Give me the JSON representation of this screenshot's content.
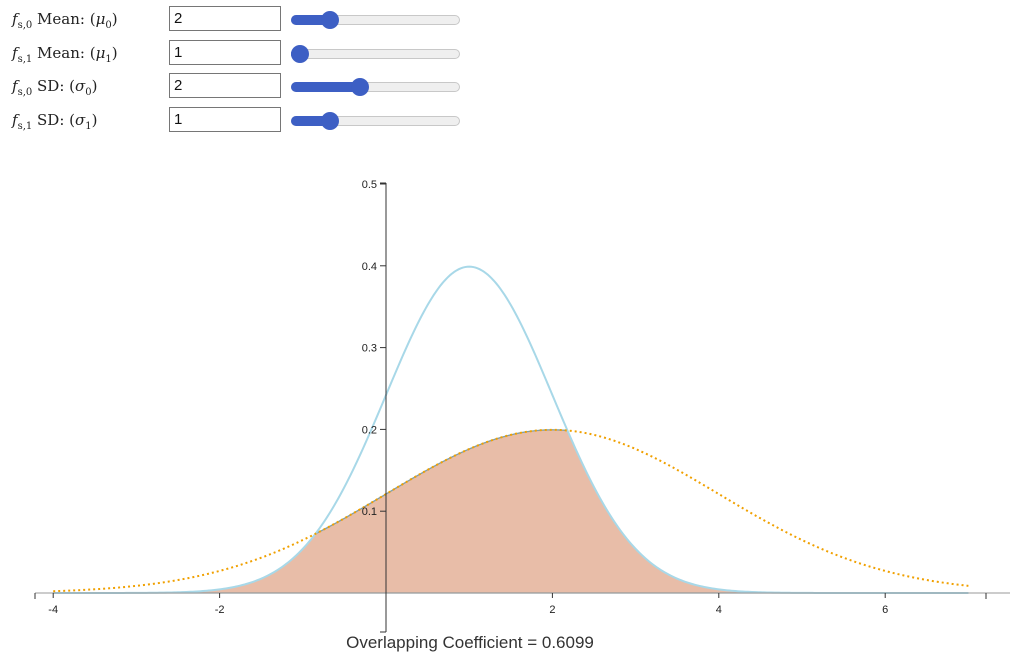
{
  "controls": [
    {
      "id": "mu0",
      "fname": "s,0",
      "word": "Mean:",
      "greek": "μ",
      "sub": "0",
      "value": "2",
      "slider": {
        "min": 0,
        "max": 10,
        "value": 2
      }
    },
    {
      "id": "mu1",
      "fname": "s,1",
      "word": "Mean:",
      "greek": "μ",
      "sub": "1",
      "value": "1",
      "slider": {
        "min": 1,
        "max": 10,
        "value": 1
      }
    },
    {
      "id": "sd0",
      "fname": "s,0",
      "word": "SD:",
      "greek": "σ",
      "sub": "0",
      "value": "2",
      "slider": {
        "min": 0,
        "max": 5,
        "value": 2
      }
    },
    {
      "id": "sd1",
      "fname": "s,1",
      "word": "SD:",
      "greek": "σ",
      "sub": "1",
      "value": "1",
      "slider": {
        "min": 0,
        "max": 5,
        "value": 1
      }
    }
  ],
  "caption": "Overlapping Coefficient = 0.6099",
  "colors": {
    "slider_accent": "#3d5fc4",
    "curve0": "#f0a000",
    "curve1": "#a8d8e8",
    "overlap_fill": "#e8bda8",
    "overlap_stroke": "#7f9fa6"
  },
  "chart_data": {
    "type": "area",
    "xlim": [
      -4,
      7
    ],
    "ylim": [
      0,
      0.5
    ],
    "x_ticks": [
      -4,
      -2,
      2,
      4,
      6
    ],
    "x_tick_labels": [
      "-4",
      "-2",
      "2",
      "4",
      "6"
    ],
    "y_ticks": [
      0.1,
      0.2,
      0.3,
      0.4,
      0.5
    ],
    "y_tick_labels": [
      "0.1",
      "0.2",
      "0.3",
      "0.4",
      "0.5"
    ],
    "series": [
      {
        "distribution": "normal",
        "mean": 2,
        "sd": 2,
        "style": "dotted"
      },
      {
        "distribution": "normal",
        "mean": 1,
        "sd": 1,
        "style": "solid"
      }
    ],
    "overlap": {
      "shaded": true,
      "coefficient": 0.6099
    }
  }
}
